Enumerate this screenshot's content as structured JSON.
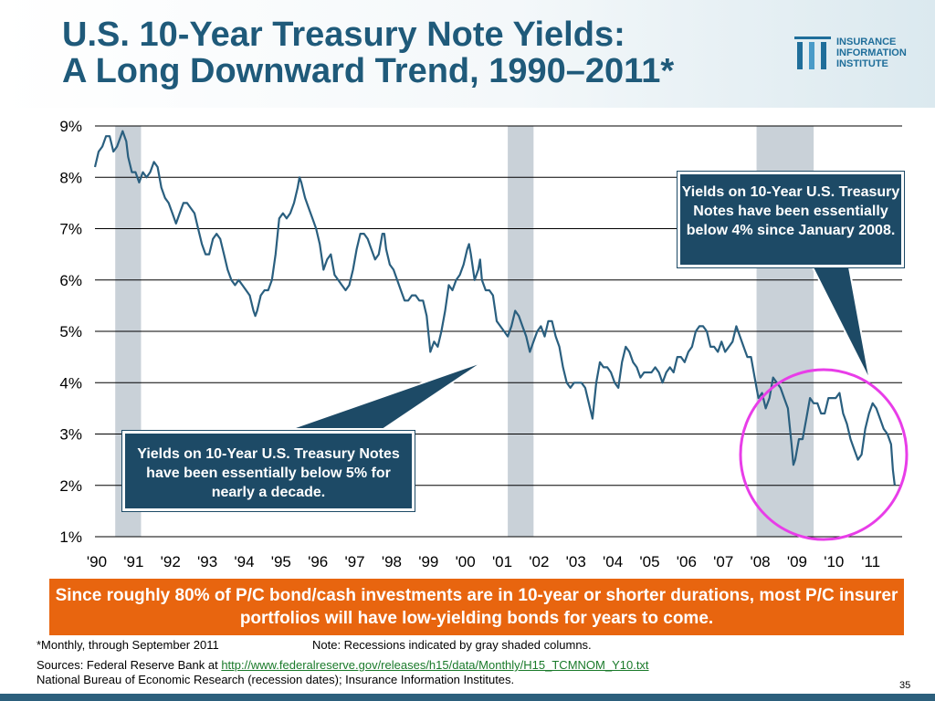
{
  "slide": {
    "title_line1": "U.S. 10-Year Treasury Note Yields:",
    "title_line2": "A Long Downward Trend, 1990–2011*",
    "logo": {
      "line1": "INSURANCE",
      "line2": "INFORMATION",
      "line3": "INSTITUTE"
    },
    "callout_left": "Yields on 10-Year U.S. Treasury Notes have been essentially below 5% for nearly a decade.",
    "callout_right": "Yields on 10-Year U.S. Treasury Notes have been essentially  below 4% since January 2008.",
    "banner": "Since roughly 80% of P/C bond/cash investments are in 10-year or shorter durations, most P/C insurer portfolios will have low-yielding bonds for years to come.",
    "footnote_monthly": "*Monthly, through September 2011",
    "footnote_note": "Note: Recessions indicated by gray shaded columns.",
    "sources_prefix": "Sources: Federal Reserve Bank at ",
    "sources_link": "http://www.federalreserve.gov/releases/h15/data/Monthly/H15_TCMNOM_Y10.txt",
    "sources_line2": "National Bureau of Economic Research (recession dates); Insurance Information Institutes.",
    "page_number": "35",
    "colors": {
      "title": "#1f5a7a",
      "line": "#2a5f7f",
      "callout": "#1d4a66",
      "banner": "#e8650f",
      "highlight_circle": "#e83de8",
      "recession_shading": "#c9d1d8"
    }
  },
  "chart_data": {
    "type": "line",
    "ylim": [
      1,
      9
    ],
    "yticks": [
      "1%",
      "2%",
      "3%",
      "4%",
      "5%",
      "6%",
      "7%",
      "8%",
      "9%"
    ],
    "xticks": [
      "'90",
      "'91",
      "'92",
      "'93",
      "'94",
      "'95",
      "'96",
      "'97",
      "'98",
      "'99",
      "'00",
      "'01",
      "'02",
      "'03",
      "'04",
      "'05",
      "'06",
      "'07",
      "'08",
      "'09",
      "'10",
      "'11"
    ],
    "recessions": [
      [
        1990.55,
        1991.25
      ],
      [
        2001.2,
        2001.9
      ],
      [
        2007.95,
        2009.5
      ]
    ],
    "highlight": "2008-2011 circled",
    "series": [
      {
        "points": [
          [
            1990.0,
            8.2
          ],
          [
            1990.1,
            8.5
          ],
          [
            1990.2,
            8.6
          ],
          [
            1990.3,
            8.8
          ],
          [
            1990.4,
            8.8
          ],
          [
            1990.5,
            8.5
          ],
          [
            1990.6,
            8.6
          ],
          [
            1990.7,
            8.8
          ],
          [
            1990.75,
            8.9
          ],
          [
            1990.85,
            8.7
          ],
          [
            1990.9,
            8.4
          ],
          [
            1991.0,
            8.1
          ],
          [
            1991.1,
            8.1
          ],
          [
            1991.2,
            7.9
          ],
          [
            1991.3,
            8.1
          ],
          [
            1991.4,
            8.0
          ],
          [
            1991.5,
            8.1
          ],
          [
            1991.6,
            8.3
          ],
          [
            1991.7,
            8.2
          ],
          [
            1991.8,
            7.8
          ],
          [
            1991.9,
            7.6
          ],
          [
            1992.0,
            7.5
          ],
          [
            1992.1,
            7.3
          ],
          [
            1992.2,
            7.1
          ],
          [
            1992.3,
            7.3
          ],
          [
            1992.4,
            7.5
          ],
          [
            1992.5,
            7.5
          ],
          [
            1992.6,
            7.4
          ],
          [
            1992.7,
            7.3
          ],
          [
            1992.8,
            7.0
          ],
          [
            1992.9,
            6.7
          ],
          [
            1993.0,
            6.5
          ],
          [
            1993.1,
            6.5
          ],
          [
            1993.2,
            6.8
          ],
          [
            1993.3,
            6.9
          ],
          [
            1993.4,
            6.8
          ],
          [
            1993.5,
            6.5
          ],
          [
            1993.6,
            6.2
          ],
          [
            1993.7,
            6.0
          ],
          [
            1993.8,
            5.9
          ],
          [
            1993.9,
            6.0
          ],
          [
            1994.0,
            5.9
          ],
          [
            1994.1,
            5.8
          ],
          [
            1994.2,
            5.7
          ],
          [
            1994.3,
            5.4
          ],
          [
            1994.35,
            5.3
          ],
          [
            1994.4,
            5.4
          ],
          [
            1994.5,
            5.7
          ],
          [
            1994.6,
            5.8
          ],
          [
            1994.7,
            5.8
          ],
          [
            1994.8,
            6.0
          ],
          [
            1994.9,
            6.5
          ],
          [
            1995.0,
            7.2
          ],
          [
            1995.1,
            7.3
          ],
          [
            1995.2,
            7.2
          ],
          [
            1995.3,
            7.3
          ],
          [
            1995.4,
            7.5
          ],
          [
            1995.5,
            7.8
          ],
          [
            1995.55,
            8.0
          ],
          [
            1995.6,
            7.9
          ],
          [
            1995.7,
            7.6
          ],
          [
            1995.8,
            7.4
          ],
          [
            1995.9,
            7.2
          ],
          [
            1996.0,
            7.0
          ],
          [
            1996.1,
            6.7
          ],
          [
            1996.2,
            6.2
          ],
          [
            1996.3,
            6.4
          ],
          [
            1996.4,
            6.5
          ],
          [
            1996.5,
            6.1
          ],
          [
            1996.6,
            6.0
          ],
          [
            1996.7,
            5.9
          ],
          [
            1996.8,
            5.8
          ],
          [
            1996.9,
            5.9
          ],
          [
            1997.0,
            6.2
          ],
          [
            1997.1,
            6.6
          ],
          [
            1997.2,
            6.9
          ],
          [
            1997.3,
            6.9
          ],
          [
            1997.4,
            6.8
          ],
          [
            1997.5,
            6.6
          ],
          [
            1997.6,
            6.4
          ],
          [
            1997.7,
            6.5
          ],
          [
            1997.8,
            6.9
          ],
          [
            1997.85,
            6.9
          ],
          [
            1997.9,
            6.6
          ],
          [
            1998.0,
            6.3
          ],
          [
            1998.1,
            6.2
          ],
          [
            1998.2,
            6.0
          ],
          [
            1998.3,
            5.8
          ],
          [
            1998.4,
            5.6
          ],
          [
            1998.5,
            5.6
          ],
          [
            1998.6,
            5.7
          ],
          [
            1998.7,
            5.7
          ],
          [
            1998.8,
            5.6
          ],
          [
            1998.9,
            5.6
          ],
          [
            1999.0,
            5.3
          ],
          [
            1999.1,
            4.6
          ],
          [
            1999.2,
            4.8
          ],
          [
            1999.3,
            4.7
          ],
          [
            1999.4,
            5.0
          ],
          [
            1999.5,
            5.4
          ],
          [
            1999.6,
            5.9
          ],
          [
            1999.7,
            5.8
          ],
          [
            1999.8,
            6.0
          ],
          [
            1999.9,
            6.1
          ],
          [
            2000.0,
            6.3
          ],
          [
            2000.1,
            6.6
          ],
          [
            2000.15,
            6.7
          ],
          [
            2000.2,
            6.5
          ],
          [
            2000.3,
            6.0
          ],
          [
            2000.4,
            6.2
          ],
          [
            2000.45,
            6.4
          ],
          [
            2000.5,
            6.0
          ],
          [
            2000.6,
            5.8
          ],
          [
            2000.7,
            5.8
          ],
          [
            2000.8,
            5.7
          ],
          [
            2000.9,
            5.2
          ],
          [
            2001.0,
            5.1
          ],
          [
            2001.1,
            5.0
          ],
          [
            2001.2,
            4.9
          ],
          [
            2001.3,
            5.1
          ],
          [
            2001.4,
            5.4
          ],
          [
            2001.5,
            5.3
          ],
          [
            2001.6,
            5.1
          ],
          [
            2001.7,
            4.9
          ],
          [
            2001.8,
            4.6
          ],
          [
            2001.9,
            4.8
          ],
          [
            2002.0,
            5.0
          ],
          [
            2002.1,
            5.1
          ],
          [
            2002.2,
            4.9
          ],
          [
            2002.3,
            5.2
          ],
          [
            2002.4,
            5.2
          ],
          [
            2002.5,
            4.9
          ],
          [
            2002.6,
            4.7
          ],
          [
            2002.7,
            4.3
          ],
          [
            2002.8,
            4.0
          ],
          [
            2002.9,
            3.9
          ],
          [
            2003.0,
            4.0
          ],
          [
            2003.1,
            4.0
          ],
          [
            2003.2,
            4.0
          ],
          [
            2003.3,
            3.9
          ],
          [
            2003.4,
            3.6
          ],
          [
            2003.5,
            3.3
          ],
          [
            2003.6,
            4.0
          ],
          [
            2003.7,
            4.4
          ],
          [
            2003.8,
            4.3
          ],
          [
            2003.9,
            4.3
          ],
          [
            2004.0,
            4.2
          ],
          [
            2004.1,
            4.0
          ],
          [
            2004.2,
            3.9
          ],
          [
            2004.3,
            4.4
          ],
          [
            2004.4,
            4.7
          ],
          [
            2004.5,
            4.6
          ],
          [
            2004.6,
            4.4
          ],
          [
            2004.7,
            4.3
          ],
          [
            2004.8,
            4.1
          ],
          [
            2004.9,
            4.2
          ],
          [
            2005.0,
            4.2
          ],
          [
            2005.1,
            4.2
          ],
          [
            2005.2,
            4.3
          ],
          [
            2005.3,
            4.2
          ],
          [
            2005.4,
            4.0
          ],
          [
            2005.5,
            4.2
          ],
          [
            2005.6,
            4.3
          ],
          [
            2005.7,
            4.2
          ],
          [
            2005.8,
            4.5
          ],
          [
            2005.9,
            4.5
          ],
          [
            2006.0,
            4.4
          ],
          [
            2006.1,
            4.6
          ],
          [
            2006.2,
            4.7
          ],
          [
            2006.3,
            5.0
          ],
          [
            2006.4,
            5.1
          ],
          [
            2006.5,
            5.1
          ],
          [
            2006.6,
            5.0
          ],
          [
            2006.7,
            4.7
          ],
          [
            2006.8,
            4.7
          ],
          [
            2006.9,
            4.6
          ],
          [
            2007.0,
            4.8
          ],
          [
            2007.1,
            4.6
          ],
          [
            2007.2,
            4.7
          ],
          [
            2007.3,
            4.8
          ],
          [
            2007.4,
            5.1
          ],
          [
            2007.5,
            4.9
          ],
          [
            2007.6,
            4.7
          ],
          [
            2007.7,
            4.5
          ],
          [
            2007.8,
            4.5
          ],
          [
            2007.9,
            4.1
          ],
          [
            2008.0,
            3.7
          ],
          [
            2008.1,
            3.8
          ],
          [
            2008.2,
            3.5
          ],
          [
            2008.3,
            3.7
          ],
          [
            2008.4,
            4.1
          ],
          [
            2008.5,
            4.0
          ],
          [
            2008.6,
            3.9
          ],
          [
            2008.7,
            3.7
          ],
          [
            2008.8,
            3.5
          ],
          [
            2008.9,
            2.8
          ],
          [
            2008.95,
            2.4
          ],
          [
            2009.0,
            2.5
          ],
          [
            2009.1,
            2.9
          ],
          [
            2009.2,
            2.9
          ],
          [
            2009.3,
            3.3
          ],
          [
            2009.4,
            3.7
          ],
          [
            2009.5,
            3.6
          ],
          [
            2009.6,
            3.6
          ],
          [
            2009.7,
            3.4
          ],
          [
            2009.8,
            3.4
          ],
          [
            2009.9,
            3.7
          ],
          [
            2010.0,
            3.7
          ],
          [
            2010.1,
            3.7
          ],
          [
            2010.2,
            3.8
          ],
          [
            2010.3,
            3.4
          ],
          [
            2010.4,
            3.2
          ],
          [
            2010.5,
            2.9
          ],
          [
            2010.6,
            2.7
          ],
          [
            2010.7,
            2.5
          ],
          [
            2010.8,
            2.6
          ],
          [
            2010.9,
            3.1
          ],
          [
            2011.0,
            3.4
          ],
          [
            2011.1,
            3.6
          ],
          [
            2011.2,
            3.5
          ],
          [
            2011.3,
            3.3
          ],
          [
            2011.4,
            3.1
          ],
          [
            2011.5,
            3.0
          ],
          [
            2011.6,
            2.8
          ],
          [
            2011.65,
            2.3
          ],
          [
            2011.7,
            2.0
          ]
        ]
      }
    ]
  }
}
